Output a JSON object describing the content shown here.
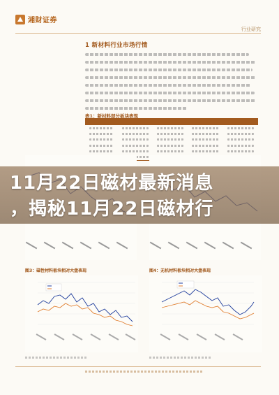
{
  "header": {
    "brand_name": "湘财证券",
    "doc_type": "行业研究"
  },
  "section": {
    "title": "1 新材料行业市场行情"
  },
  "table": {
    "caption": "表1：新材料部分板块表现"
  },
  "banner": {
    "line1": "11月22日磁材最新消息",
    "line2": "，揭秘11月22日磁材行"
  },
  "figures": {
    "left_caption": "图3：磁性材料板块相对大盘表现",
    "right_caption": "图4：无机材料板块相对大盘表现"
  },
  "colors": {
    "accent": "#a25a1e",
    "series_blue": "#1f3d9c",
    "series_orange": "#e07b2a",
    "banner_overlay": "#8f7458"
  }
}
